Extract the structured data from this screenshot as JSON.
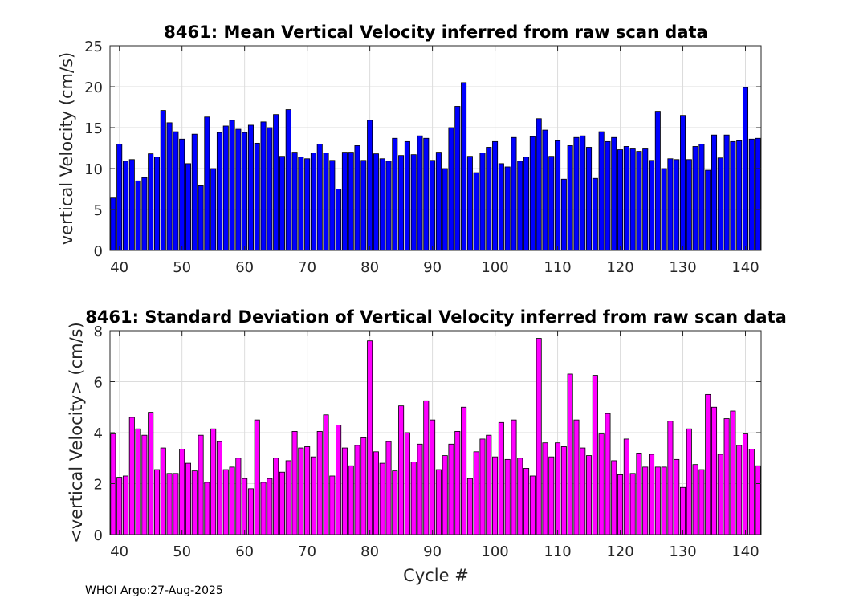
{
  "footer": "WHOI Argo:27-Aug-2025",
  "colors": {
    "top_bars": "#0000ff",
    "bottom_bars": "#ff00ff",
    "bar_edge": "#000000"
  },
  "chart_data": [
    {
      "type": "bar",
      "title": "8461: Mean Vertical Velocity inferred from raw scan data",
      "xlabel": "",
      "ylabel": "vertical Velocity (cm/s)",
      "xlim": [
        38.5,
        142.5
      ],
      "ylim": [
        0,
        25
      ],
      "xticks": [
        40,
        50,
        60,
        70,
        80,
        90,
        100,
        110,
        120,
        130,
        140
      ],
      "yticks": [
        0,
        5,
        10,
        15,
        20,
        25
      ],
      "grid": true,
      "x_start": 39,
      "values": [
        6.4,
        13.0,
        10.9,
        11.1,
        8.5,
        8.9,
        11.8,
        11.4,
        17.1,
        15.6,
        14.5,
        13.6,
        10.6,
        14.2,
        7.9,
        16.3,
        10.0,
        14.4,
        15.2,
        15.9,
        14.8,
        14.4,
        15.3,
        13.1,
        15.7,
        15.0,
        16.6,
        11.5,
        17.2,
        12.0,
        11.4,
        11.2,
        11.9,
        13.0,
        11.9,
        11.0,
        7.5,
        12.0,
        12.0,
        12.8,
        11.0,
        15.9,
        11.8,
        11.2,
        10.9,
        13.7,
        11.6,
        13.3,
        11.7,
        14.0,
        13.7,
        11.0,
        12.0,
        10.0,
        15.0,
        17.6,
        20.5,
        11.5,
        9.5,
        11.9,
        12.6,
        13.3,
        10.6,
        10.2,
        13.8,
        10.9,
        11.4,
        13.9,
        16.1,
        14.7,
        11.5,
        13.4,
        8.7,
        12.8,
        13.8,
        14.0,
        12.6,
        8.8,
        14.5,
        13.3,
        13.8,
        12.3,
        12.7,
        12.4,
        12.1,
        12.4,
        11.0,
        17.0,
        10.0,
        11.2,
        11.1,
        16.5,
        11.1,
        12.7,
        13.0,
        9.8,
        14.1,
        11.3,
        14.1,
        13.3,
        13.4,
        19.9,
        13.6,
        13.7
      ]
    },
    {
      "type": "bar",
      "title": "8461: Standard Deviation of Vertical Velocity inferred from raw scan data",
      "xlabel": "Cycle #",
      "ylabel": "<vertical Velocity> (cm/s)",
      "xlim": [
        38.5,
        142.5
      ],
      "ylim": [
        0,
        8
      ],
      "xticks": [
        40,
        50,
        60,
        70,
        80,
        90,
        100,
        110,
        120,
        130,
        140
      ],
      "yticks": [
        0,
        2,
        4,
        6,
        8
      ],
      "grid": true,
      "x_start": 39,
      "values": [
        3.95,
        2.25,
        2.3,
        4.6,
        4.15,
        3.9,
        4.8,
        2.55,
        3.4,
        2.4,
        2.4,
        3.35,
        2.8,
        2.5,
        3.9,
        2.05,
        4.15,
        3.65,
        2.55,
        2.65,
        3.0,
        2.2,
        1.8,
        4.5,
        2.05,
        2.2,
        3.0,
        2.45,
        2.9,
        4.05,
        3.4,
        3.45,
        3.05,
        4.05,
        4.7,
        2.3,
        4.3,
        3.4,
        2.7,
        3.5,
        3.8,
        7.6,
        3.25,
        2.8,
        3.65,
        2.5,
        5.05,
        4.0,
        2.85,
        3.55,
        5.25,
        4.5,
        2.55,
        3.1,
        3.55,
        4.05,
        5.0,
        2.2,
        3.25,
        3.75,
        3.9,
        3.05,
        4.4,
        2.95,
        4.5,
        3.0,
        2.6,
        2.3,
        7.7,
        3.6,
        3.05,
        3.6,
        3.45,
        6.3,
        4.5,
        3.4,
        3.1,
        6.25,
        3.95,
        4.75,
        2.9,
        2.35,
        3.75,
        2.4,
        3.2,
        2.65,
        3.15,
        2.65,
        2.65,
        4.45,
        2.95,
        1.85,
        4.15,
        2.75,
        2.55,
        5.5,
        5.0,
        3.15,
        4.55,
        4.85,
        3.5,
        3.95,
        3.35,
        2.7
      ]
    }
  ]
}
